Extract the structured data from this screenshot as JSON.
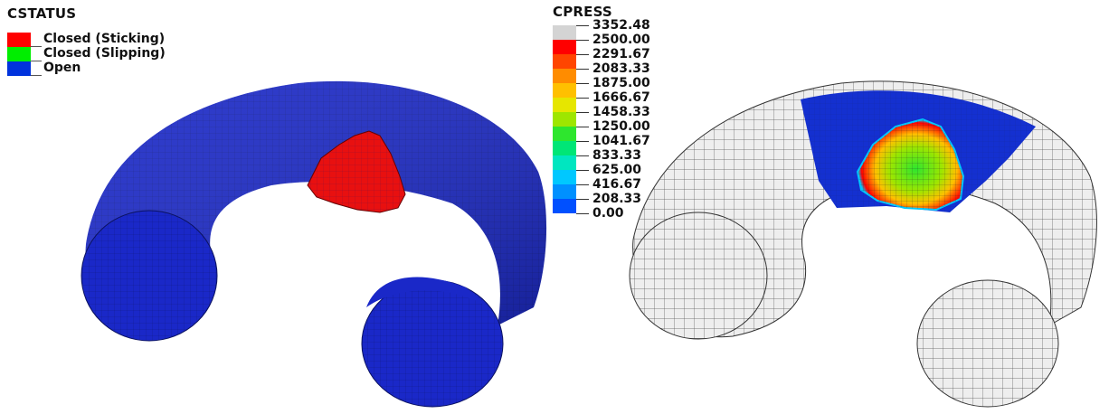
{
  "left_panel": {
    "title": "CSTATUS",
    "legend": [
      {
        "label": "Closed (Sticking)",
        "color": "#ff0000"
      },
      {
        "label": "Closed (Slipping)",
        "color": "#00ee00"
      },
      {
        "label": "Open",
        "color": "#0033dd"
      }
    ],
    "body_color": "#1a28c8",
    "contact_color": "#e81010"
  },
  "right_panel": {
    "title": "CPRESS",
    "labels": [
      "3352.48",
      "2500.00",
      "2291.67",
      "2083.33",
      "1875.00",
      "1666.67",
      "1458.33",
      "1250.00",
      "1041.67",
      "833.33",
      "625.00",
      "416.67",
      "208.33",
      "0.00"
    ],
    "colors": [
      "#d4d4d4",
      "#ff0000",
      "#ff4500",
      "#ff8c00",
      "#ffc000",
      "#e6e600",
      "#9ee600",
      "#2ee62e",
      "#00e676",
      "#00e6c0",
      "#00c8ff",
      "#0090ff",
      "#0050ff",
      "#0030e0"
    ],
    "body_color": "#eeeeee",
    "contact_zone_color": "#1430d0"
  }
}
